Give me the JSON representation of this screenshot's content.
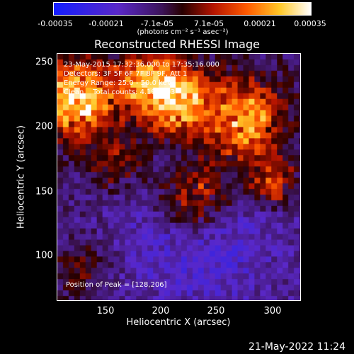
{
  "colorbar": {
    "labels": [
      "-0.00035",
      "-0.00021",
      "-7.1e-05",
      "7.1e-05",
      "0.00021",
      "0.00035"
    ],
    "units": "(photons cm⁻² s⁻¹ asec⁻²)",
    "colors": {
      "low": "#1e2bff",
      "mid": "#2b0000",
      "high": "#ffffff"
    }
  },
  "title": "Reconstructed RHESSI Image",
  "annotations": {
    "line1": "23-May-2015 17:32:36.000 to 17:35:16.000",
    "line2": "Detectors: 3F 5F 6F 7F 8F 9F, Att 1",
    "line3": "Energy Range: 25.0 - 50.0 keV",
    "line4": "Clean    Total counts: 4.19E+03",
    "peak": "Position of Peak = [128,206]"
  },
  "axes": {
    "xlabel": "Heliocentric X (arcsec)",
    "ylabel": "Heliocentric Y (arcsec)",
    "xticks": [
      "150",
      "200",
      "250",
      "300"
    ],
    "yticks": [
      "250",
      "200",
      "150",
      "100"
    ]
  },
  "timestamp": "21-May-2022 11:24"
}
